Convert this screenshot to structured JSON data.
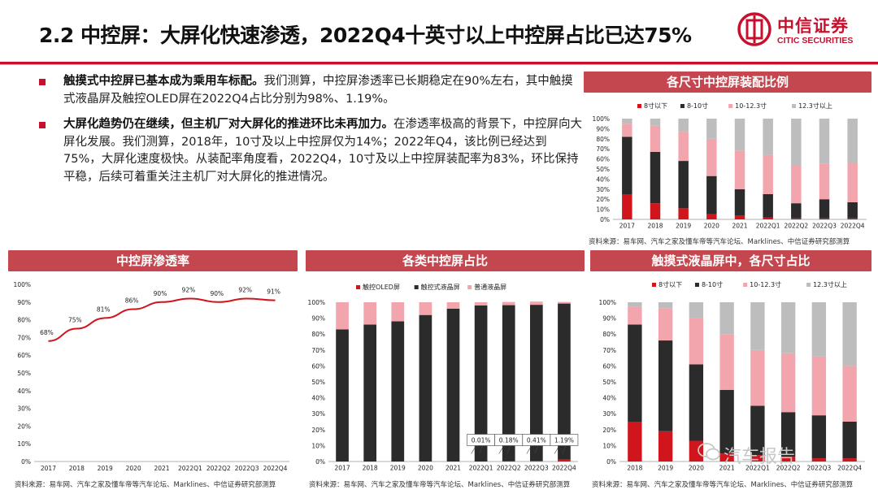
{
  "header": {
    "title": "2.2 中控屏：大屏化快速渗透，2022Q4十英寸以上中控屏占比已达75%",
    "logo_cn": "中信证券",
    "logo_en": "CITIC SECURITIES",
    "brand_color": "#c8102e"
  },
  "bullets": [
    {
      "bold": "触摸式中控屏已基本成为乘用车标配。",
      "text": "我们测算，中控屏渗透率已长期稳定在90%左右，其中触摸式液晶屏及触控OLED屏在2022Q4占比分别为98%、1.19%。"
    },
    {
      "bold": "大屏化趋势仍在继续，但主机厂对大屏化的推进环比未再加力。",
      "text": "在渗透率极高的背景下，中控屏向大屏化发展。我们测算，2018年，10寸及以上中控屏仅为14%；2022年Q4，该比例已经达到75%，大屏化速度极快。从装配率角度看，2022Q4，10寸及以上中控屏装配率为83%，环比保持平稳，后续可着重关注主机厂对大屏化的推进情况。"
    }
  ],
  "panels": {
    "size_ratio": {
      "title": "各尺寸中控屏装配比例",
      "source": "资料来源：易车网、汽车之家及懂车帝等汽车论坛、Marklines、中信证券研究部测算"
    },
    "penetration": {
      "title": "中控屏渗透率",
      "source": "资料来源：易车网、汽车之家及懂车帝等汽车论坛、Marklines、中信证券研究部测算"
    },
    "types": {
      "title": "各类中控屏占比",
      "source": "资料来源：易车网、汽车之家及懂车帝等汽车论坛、Marklines、中信证券研究部测算"
    },
    "touch_lcd": {
      "title": "触摸式液晶屏中，各尺寸占比",
      "source": "资料来源：易车网、汽车之家及懂车帝等汽车论坛、Marklines、中信证券研究部测算"
    }
  },
  "chart_data": [
    {
      "id": "size_ratio",
      "type": "bar",
      "stacked": true,
      "categories": [
        "2017",
        "2018",
        "2019",
        "2020",
        "2021",
        "2022Q1",
        "2022Q2",
        "2022Q3",
        "2022Q4"
      ],
      "series": [
        {
          "name": "8寸以下",
          "color": "#d0151c",
          "values": [
            25,
            16,
            11,
            5,
            4,
            2,
            1,
            1,
            1
          ]
        },
        {
          "name": "8-10寸",
          "color": "#2b2b2b",
          "values": [
            57,
            51,
            47,
            38,
            26,
            23,
            15,
            19,
            16
          ]
        },
        {
          "name": "10-12.3寸",
          "color": "#f2a5ad",
          "values": [
            13,
            26,
            29,
            37,
            38,
            39,
            38,
            35,
            39
          ]
        },
        {
          "name": "12.3寸以上",
          "color": "#bdbdbd",
          "values": [
            5,
            7,
            13,
            20,
            32,
            36,
            46,
            45,
            44
          ]
        }
      ],
      "yticks": [
        "0%",
        "10%",
        "20%",
        "30%",
        "40%",
        "50%",
        "60%",
        "70%",
        "80%",
        "90%",
        "100%"
      ],
      "ylim": [
        0,
        100
      ],
      "legend": "top"
    },
    {
      "id": "penetration",
      "type": "line",
      "categories": [
        "2017",
        "2018",
        "2019",
        "2020",
        "2021",
        "2022Q1",
        "2022Q2",
        "2022Q3",
        "2022Q4"
      ],
      "series": [
        {
          "name": "",
          "color": "#d0151c",
          "values": [
            68,
            75,
            81,
            86,
            90,
            92,
            90,
            92,
            91
          ]
        }
      ],
      "data_labels": [
        "68%",
        "75%",
        "81%",
        "86%",
        "90%",
        "92%",
        "90%",
        "92%",
        "91%"
      ],
      "yticks": [
        "0%",
        "10%",
        "20%",
        "30%",
        "40%",
        "50%",
        "60%",
        "70%",
        "80%",
        "90%",
        "100%"
      ],
      "ylim": [
        0,
        100
      ]
    },
    {
      "id": "types",
      "type": "bar",
      "stacked": true,
      "categories": [
        "2017",
        "2018",
        "2019",
        "2020",
        "2021",
        "2022Q1",
        "2022Q2",
        "2022Q3",
        "2022Q4"
      ],
      "series": [
        {
          "name": "触控OLED屏",
          "color": "#d0151c",
          "values": [
            0,
            0,
            0,
            0,
            0,
            0.01,
            0.18,
            0.41,
            1.19
          ]
        },
        {
          "name": "触控式液晶屏",
          "color": "#2b2b2b",
          "values": [
            83,
            86,
            88,
            92,
            96,
            98,
            98,
            98,
            98
          ]
        },
        {
          "name": "普通液晶屏",
          "color": "#f2a5ad",
          "values": [
            17,
            14,
            12,
            8,
            4,
            2,
            2,
            2,
            1
          ]
        }
      ],
      "annotations": [
        "0.01%",
        "0.18%",
        "0.41%",
        "1.19%"
      ],
      "yticks": [
        "0%",
        "10%",
        "20%",
        "30%",
        "40%",
        "50%",
        "60%",
        "70%",
        "80%",
        "90%",
        "100%"
      ],
      "ylim": [
        0,
        100
      ],
      "legend": "top"
    },
    {
      "id": "touch_lcd",
      "type": "bar",
      "stacked": true,
      "categories": [
        "2018",
        "2019",
        "2020",
        "2021",
        "2022Q1",
        "2022Q2",
        "2022Q3",
        "2022Q4"
      ],
      "series": [
        {
          "name": "8寸以下",
          "color": "#d0151c",
          "values": [
            25,
            19,
            13,
            5,
            4,
            3,
            2,
            2
          ]
        },
        {
          "name": "8-10寸",
          "color": "#2b2b2b",
          "values": [
            61,
            57,
            48,
            40,
            31,
            28,
            27,
            23
          ]
        },
        {
          "name": "10-12.3寸",
          "color": "#f2a5ad",
          "values": [
            11,
            20,
            29,
            35,
            35,
            37,
            37,
            35
          ]
        },
        {
          "name": "12.3寸以上",
          "color": "#bdbdbd",
          "values": [
            3,
            4,
            10,
            20,
            30,
            32,
            34,
            40
          ]
        }
      ],
      "yticks": [
        "0%",
        "10%",
        "20%",
        "30%",
        "40%",
        "50%",
        "60%",
        "70%",
        "80%",
        "90%",
        "100%"
      ],
      "ylim": [
        0,
        100
      ],
      "legend": "top"
    }
  ],
  "watermark": "汽车报告"
}
